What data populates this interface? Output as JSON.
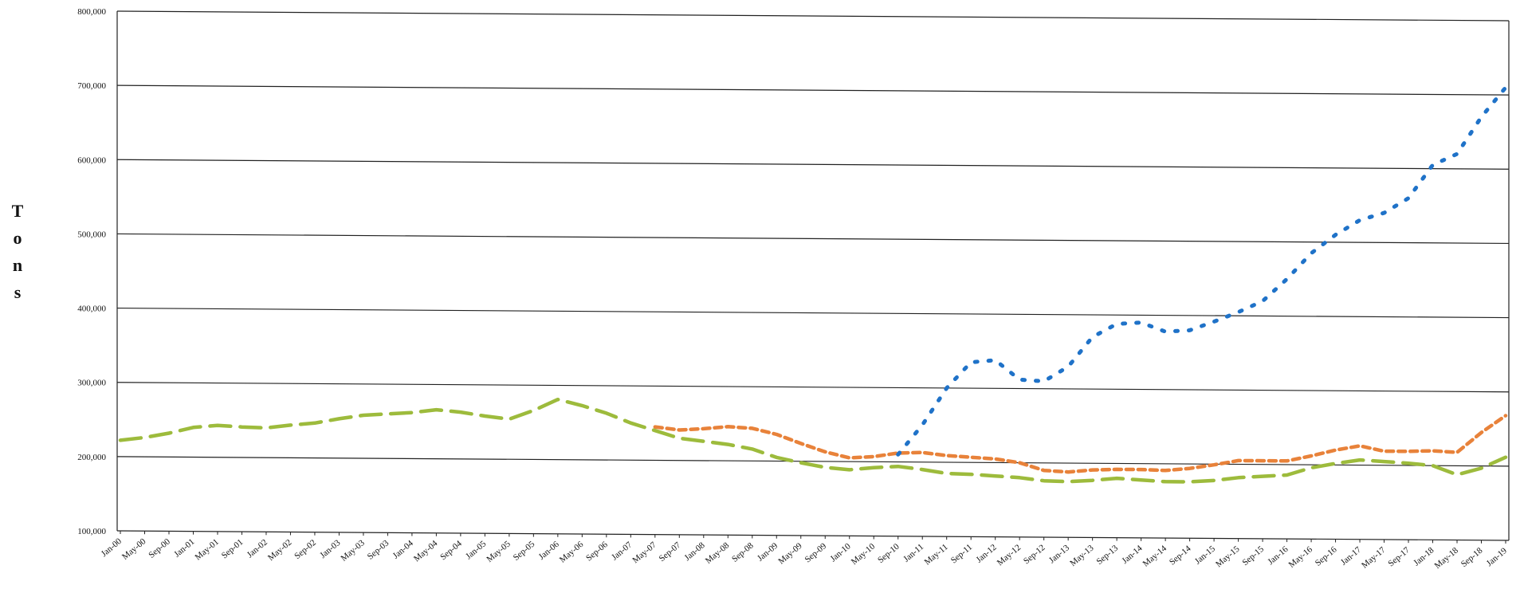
{
  "chart_data": {
    "type": "line",
    "title": "",
    "xlabel": "",
    "ylabel": "Tons",
    "ylim": [
      100000,
      800000
    ],
    "yticks": [
      100000,
      200000,
      300000,
      400000,
      500000,
      600000,
      700000,
      800000
    ],
    "ytick_labels": [
      "100,000",
      "200,000",
      "300,000",
      "400,000",
      "500,000",
      "600,000",
      "700,000",
      "800,000"
    ],
    "categories": [
      "Jan-00",
      "May-00",
      "Sep-00",
      "Jan-01",
      "May-01",
      "Sep-01",
      "Jan-02",
      "May-02",
      "Sep-02",
      "Jan-03",
      "May-03",
      "Sep-03",
      "Jan-04",
      "May-04",
      "Sep-04",
      "Jan-05",
      "May-05",
      "Sep-05",
      "Jan-06",
      "May-06",
      "Sep-06",
      "Jan-07",
      "May-07",
      "Sep-07",
      "Jan-08",
      "May-08",
      "Sep-08",
      "Jan-09",
      "May-09",
      "Sep-09",
      "Jan-10",
      "May-10",
      "Sep-10",
      "Jan-11",
      "May-11",
      "Sep-11",
      "Jan-12",
      "May-12",
      "Sep-12",
      "Jan-13",
      "May-13",
      "Sep-13",
      "Jan-14",
      "May-14",
      "Sep-14",
      "Jan-15",
      "May-15",
      "Sep-15",
      "Jan-16",
      "May-16",
      "Sep-16",
      "Jan-17",
      "May-17",
      "Sep-17",
      "Jan-18",
      "May-18",
      "Sep-18",
      "Jan-19"
    ],
    "grid": true,
    "legend": "none",
    "series": [
      {
        "color": "#9dbb3c",
        "dash": "long",
        "values": [
          222000,
          226000,
          232000,
          240000,
          243000,
          241000,
          240000,
          244000,
          247000,
          253000,
          258000,
          260000,
          262000,
          266000,
          263000,
          258000,
          254000,
          266000,
          281000,
          273000,
          263000,
          250000,
          240000,
          230000,
          226000,
          222000,
          216000,
          205000,
          198000,
          192000,
          189000,
          192000,
          194000,
          190000,
          185000,
          184000,
          182000,
          180000,
          176000,
          175000,
          177000,
          180000,
          178000,
          176000,
          176000,
          178000,
          182000,
          184000,
          186000,
          196000,
          202000,
          207000,
          205000,
          203000,
          200000,
          188000,
          197000,
          212000
        ]
      },
      {
        "color": "#e8823a",
        "dash": "short",
        "values": [
          null,
          null,
          null,
          null,
          null,
          null,
          null,
          null,
          null,
          null,
          null,
          null,
          null,
          null,
          null,
          null,
          null,
          null,
          null,
          null,
          null,
          null,
          245000,
          241000,
          243000,
          246000,
          244000,
          236000,
          224000,
          213000,
          205000,
          207000,
          212000,
          213000,
          209000,
          207000,
          205000,
          200000,
          190000,
          188000,
          191000,
          192000,
          192000,
          191000,
          194000,
          199000,
          205000,
          205000,
          205000,
          212000,
          220000,
          226000,
          219000,
          219000,
          220000,
          218000,
          245000,
          268000
        ]
      },
      {
        "color": "#1f72c8",
        "dash": "dot",
        "values": [
          null,
          null,
          null,
          null,
          null,
          null,
          null,
          null,
          null,
          null,
          null,
          null,
          null,
          null,
          null,
          null,
          null,
          null,
          null,
          null,
          null,
          null,
          null,
          null,
          null,
          null,
          null,
          null,
          null,
          null,
          null,
          null,
          210000,
          250000,
          300000,
          335000,
          338000,
          312000,
          310000,
          330000,
          370000,
          388000,
          390000,
          378000,
          380000,
          392000,
          405000,
          420000,
          450000,
          485000,
          510000,
          530000,
          540000,
          560000,
          605000,
          620000,
          670000,
          710000
        ]
      }
    ]
  }
}
